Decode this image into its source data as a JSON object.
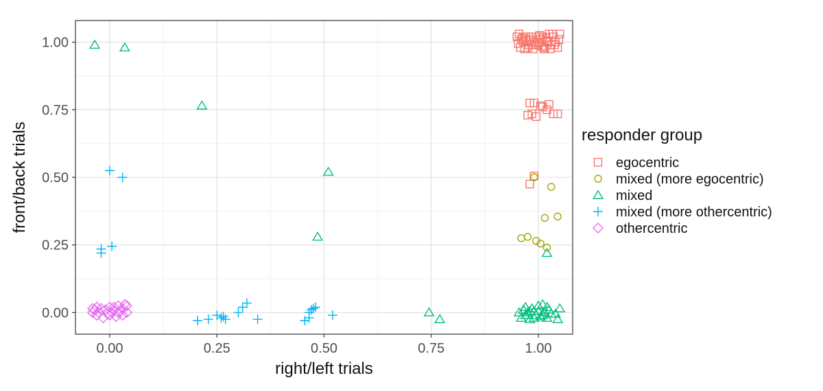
{
  "chart_data": {
    "type": "scatter",
    "title": "",
    "xlabel": "right/left trials",
    "ylabel": "front/back trials",
    "xlim": [
      -0.08,
      1.08
    ],
    "ylim": [
      -0.08,
      1.08
    ],
    "x_ticks": [
      0.0,
      0.25,
      0.5,
      0.75,
      1.0
    ],
    "x_tick_labels": [
      "0.00",
      "0.25",
      "0.50",
      "0.75",
      "1.00"
    ],
    "y_ticks": [
      0.0,
      0.25,
      0.5,
      0.75,
      1.0
    ],
    "y_tick_labels": [
      "0.00",
      "0.25",
      "0.50",
      "0.75",
      "1.00"
    ],
    "grid": true,
    "legend": {
      "title": "responder group",
      "position": "right"
    },
    "series": [
      {
        "name": "egocentric",
        "marker": "square",
        "color": "#F8766D",
        "points": [
          [
            0.95,
            1.02
          ],
          [
            0.955,
            1.03
          ],
          [
            0.96,
            1.01
          ],
          [
            0.965,
            1.0
          ],
          [
            0.97,
            1.02
          ],
          [
            0.975,
            0.98
          ],
          [
            0.98,
            1.01
          ],
          [
            0.985,
            0.99
          ],
          [
            0.99,
            1.0
          ],
          [
            0.995,
            1.02
          ],
          [
            1.0,
            0.99
          ],
          [
            1.005,
            1.01
          ],
          [
            1.01,
            1.02
          ],
          [
            1.015,
            0.98
          ],
          [
            1.02,
            1.0
          ],
          [
            1.025,
            1.03
          ],
          [
            1.03,
            0.99
          ],
          [
            1.035,
            1.02
          ],
          [
            1.04,
            1.0
          ],
          [
            1.045,
            0.98
          ],
          [
            1.05,
            1.03
          ],
          [
            0.958,
            0.98
          ],
          [
            0.968,
            0.975
          ],
          [
            0.978,
            0.99
          ],
          [
            0.988,
            0.975
          ],
          [
            1.0,
            1.0
          ],
          [
            1.008,
            0.985
          ],
          [
            1.018,
            1.015
          ],
          [
            1.028,
            0.975
          ],
          [
            1.038,
            0.99
          ],
          [
            1.048,
            1.01
          ],
          [
            0.953,
            0.995
          ],
          [
            0.963,
            1.015
          ],
          [
            0.973,
            1.005
          ],
          [
            0.983,
            1.02
          ],
          [
            0.993,
            0.99
          ],
          [
            1.003,
            1.025
          ],
          [
            1.013,
            0.975
          ],
          [
            1.023,
            1.005
          ],
          [
            1.033,
            1.03
          ],
          [
            0.975,
            0.73
          ],
          [
            0.98,
            0.775
          ],
          [
            0.985,
            0.735
          ],
          [
            0.99,
            0.775
          ],
          [
            0.995,
            0.725
          ],
          [
            1.005,
            0.765
          ],
          [
            1.01,
            0.76
          ],
          [
            1.02,
            0.75
          ],
          [
            1.025,
            0.77
          ],
          [
            1.035,
            0.735
          ],
          [
            1.045,
            0.735
          ],
          [
            0.98,
            0.475
          ],
          [
            0.99,
            0.505
          ]
        ]
      },
      {
        "name": "mixed (more egocentric)",
        "marker": "circle",
        "color": "#A3A500",
        "points": [
          [
            0.99,
            0.5
          ],
          [
            1.03,
            0.465
          ],
          [
            1.015,
            0.35
          ],
          [
            1.045,
            0.355
          ],
          [
            0.96,
            0.275
          ],
          [
            0.975,
            0.28
          ],
          [
            0.995,
            0.265
          ],
          [
            1.005,
            0.255
          ],
          [
            1.02,
            0.24
          ]
        ]
      },
      {
        "name": "mixed",
        "marker": "triangle",
        "color": "#00BF7D",
        "points": [
          [
            -0.035,
            0.99
          ],
          [
            0.035,
            0.98
          ],
          [
            0.215,
            0.765
          ],
          [
            0.51,
            0.52
          ],
          [
            0.485,
            0.28
          ],
          [
            0.745,
            0.0
          ],
          [
            0.77,
            -0.025
          ],
          [
            1.02,
            0.22
          ],
          [
            0.955,
            0.0
          ],
          [
            0.96,
            -0.02
          ],
          [
            0.965,
            0.01
          ],
          [
            0.97,
            -0.01
          ],
          [
            0.975,
            0.0
          ],
          [
            0.98,
            -0.025
          ],
          [
            0.985,
            0.015
          ],
          [
            0.99,
            0.005
          ],
          [
            0.995,
            -0.01
          ],
          [
            1.0,
            0.025
          ],
          [
            1.005,
            -0.015
          ],
          [
            1.01,
            0.03
          ],
          [
            1.015,
            0.0
          ],
          [
            1.02,
            -0.02
          ],
          [
            1.025,
            0.01
          ],
          [
            1.03,
            -0.005
          ],
          [
            1.045,
            -0.025
          ],
          [
            1.05,
            0.015
          ],
          [
            0.97,
            0.02
          ],
          [
            0.98,
            0.005
          ],
          [
            0.99,
            -0.02
          ],
          [
            1.0,
            0.005
          ],
          [
            1.01,
            -0.01
          ],
          [
            1.02,
            0.02
          ],
          [
            1.04,
            -0.005
          ]
        ]
      },
      {
        "name": "mixed (more othercentric)",
        "marker": "plus",
        "color": "#00B0F6",
        "points": [
          [
            0.0,
            0.525
          ],
          [
            0.03,
            0.5
          ],
          [
            -0.02,
            0.235
          ],
          [
            -0.02,
            0.22
          ],
          [
            0.005,
            0.245
          ],
          [
            0.205,
            -0.03
          ],
          [
            0.23,
            -0.025
          ],
          [
            0.25,
            -0.01
          ],
          [
            0.26,
            -0.02
          ],
          [
            0.265,
            -0.015
          ],
          [
            0.27,
            -0.025
          ],
          [
            0.3,
            0.0
          ],
          [
            0.31,
            0.02
          ],
          [
            0.32,
            0.035
          ],
          [
            0.345,
            -0.025
          ],
          [
            0.455,
            -0.03
          ],
          [
            0.465,
            -0.02
          ],
          [
            0.465,
            0.0
          ],
          [
            0.47,
            0.01
          ],
          [
            0.48,
            0.02
          ],
          [
            0.475,
            0.015
          ],
          [
            0.52,
            -0.01
          ]
        ]
      },
      {
        "name": "othercentric",
        "marker": "diamond",
        "color": "#E76BF3",
        "points": [
          [
            -0.04,
            0.0
          ],
          [
            -0.035,
            0.01
          ],
          [
            -0.03,
            -0.01
          ],
          [
            -0.025,
            0.0
          ],
          [
            -0.02,
            0.015
          ],
          [
            -0.015,
            -0.02
          ],
          [
            -0.01,
            0.01
          ],
          [
            -0.005,
            -0.005
          ],
          [
            0.0,
            0.02
          ],
          [
            0.005,
            0.0
          ],
          [
            0.01,
            0.01
          ],
          [
            0.015,
            -0.015
          ],
          [
            0.02,
            0.025
          ],
          [
            0.025,
            0.005
          ],
          [
            0.03,
            -0.01
          ],
          [
            0.035,
            0.03
          ],
          [
            0.04,
            0.0
          ],
          [
            -0.03,
            0.02
          ],
          [
            0.0,
            -0.01
          ],
          [
            0.02,
            0.0
          ],
          [
            0.04,
            0.025
          ],
          [
            0.01,
            0.02
          ],
          [
            -0.04,
            0.015
          ],
          [
            0.03,
            0.015
          ]
        ]
      }
    ]
  }
}
